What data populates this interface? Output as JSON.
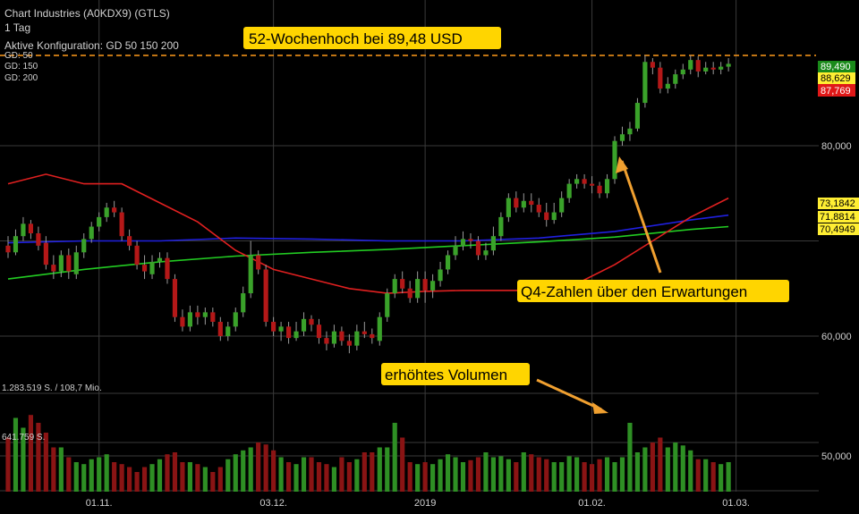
{
  "header": {
    "instrument": "Chart Industries (A0KDX9) (GTLS)",
    "interval": "1 Tag",
    "config": "Aktive Konfiguration: GD 50 150 200",
    "legend": [
      {
        "label": "GD: 50",
        "color": "#e02020"
      },
      {
        "label": "GD: 150",
        "color": "#2020e0"
      },
      {
        "label": "GD: 200",
        "color": "#22cc22"
      }
    ]
  },
  "annotations": {
    "high_52w": "52-Wochenhoch bei 89,48 USD",
    "q4": "Q4-Zahlen über den Erwartungen",
    "volume": "erhöhtes Volumen"
  },
  "price_badges": [
    {
      "text": "89,490",
      "bg": "#1a8a1a",
      "fg": "#ffffff"
    },
    {
      "text": "88,629",
      "bg": "#ffee33",
      "fg": "#000000"
    },
    {
      "text": "87,769",
      "bg": "#e01818",
      "fg": "#ffffff"
    },
    {
      "text": "73,1842",
      "bg": "#ffee33",
      "fg": "#000000"
    },
    {
      "text": "71,8814",
      "bg": "#ffee33",
      "fg": "#000000"
    },
    {
      "text": "70,4949",
      "bg": "#ffee33",
      "fg": "#000000"
    }
  ],
  "volume_labels": {
    "max": "1.283.519 S. / 108,7 Mio.",
    "mid": "641.759 S."
  },
  "colors": {
    "up": "#3aa22a",
    "down": "#b41818",
    "up_volume": "#2e8f24",
    "down_volume": "#8a1414",
    "grid": "#3a3a3a",
    "high_line": "#ff9a1a",
    "callout_bg": "#ffd500",
    "arrow": "#f0a030",
    "gd50": "#e02020",
    "gd150": "#2020e0",
    "gd200": "#22cc22"
  },
  "chart_data": {
    "type": "candlestick",
    "y_axis": {
      "ticks": [
        50,
        60,
        80
      ],
      "tick_labels": [
        "50,000",
        "60,000",
        "80,000"
      ],
      "range": [
        45,
        93
      ]
    },
    "x_axis": {
      "tick_labels": [
        {
          "label": "01.11.",
          "index": 12
        },
        {
          "label": "03.12.",
          "index": 35
        },
        {
          "label": "2019",
          "index": 55
        },
        {
          "label": "01.02.",
          "index": 77
        },
        {
          "label": "01.03.",
          "index": 96
        }
      ],
      "n_sessions": 100
    },
    "high_52w": 89.48,
    "candles": [
      [
        0,
        69.5,
        68.8,
        70.5,
        68.2
      ],
      [
        1,
        68.8,
        70.5,
        71.2,
        68.5
      ],
      [
        2,
        70.5,
        71.8,
        72.5,
        70.0
      ],
      [
        3,
        71.8,
        70.8,
        72.2,
        70.2
      ],
      [
        4,
        70.8,
        69.5,
        71.5,
        69.0
      ],
      [
        5,
        69.8,
        67.5,
        70.5,
        67.0
      ],
      [
        6,
        67.5,
        66.8,
        68.5,
        66.0
      ],
      [
        7,
        66.8,
        68.5,
        69.0,
        66.2
      ],
      [
        8,
        68.5,
        66.8,
        69.2,
        66.0
      ],
      [
        9,
        66.5,
        68.8,
        69.5,
        66.0
      ],
      [
        10,
        68.8,
        70.2,
        70.8,
        68.2
      ],
      [
        11,
        70.2,
        71.5,
        72.0,
        69.8
      ],
      [
        12,
        71.5,
        72.5,
        73.0,
        71.0
      ],
      [
        13,
        72.5,
        73.5,
        74.0,
        72.0
      ],
      [
        14,
        73.5,
        73.0,
        74.2,
        72.5
      ],
      [
        15,
        73.0,
        70.5,
        73.5,
        70.0
      ],
      [
        16,
        70.5,
        69.5,
        71.2,
        69.0
      ],
      [
        17,
        69.5,
        67.5,
        70.0,
        67.0
      ],
      [
        18,
        67.5,
        66.8,
        68.5,
        66.0
      ],
      [
        19,
        66.5,
        67.8,
        68.5,
        66.0
      ],
      [
        20,
        67.8,
        68.2,
        68.8,
        67.2
      ],
      [
        21,
        68.2,
        66.0,
        68.8,
        65.5
      ],
      [
        22,
        66.0,
        62.0,
        66.5,
        61.5
      ],
      [
        23,
        62.0,
        61.0,
        62.8,
        60.5
      ],
      [
        24,
        61.0,
        62.5,
        63.2,
        60.5
      ],
      [
        25,
        62.5,
        62.0,
        63.2,
        61.2
      ],
      [
        26,
        62.0,
        62.5,
        63.0,
        61.2
      ],
      [
        27,
        62.5,
        61.5,
        63.0,
        61.0
      ],
      [
        28,
        61.5,
        60.0,
        62.0,
        59.5
      ],
      [
        29,
        60.0,
        61.0,
        61.5,
        59.5
      ],
      [
        30,
        61.0,
        62.5,
        63.0,
        60.5
      ],
      [
        31,
        62.5,
        64.5,
        65.2,
        62.0
      ],
      [
        32,
        64.5,
        68.5,
        70.0,
        64.0
      ],
      [
        33,
        68.5,
        67.0,
        69.0,
        66.5
      ],
      [
        34,
        67.0,
        61.5,
        67.5,
        61.0
      ],
      [
        35,
        61.5,
        60.5,
        62.0,
        60.0
      ],
      [
        36,
        60.5,
        61.0,
        61.5,
        59.5
      ],
      [
        37,
        61.0,
        59.8,
        61.5,
        59.2
      ],
      [
        38,
        59.8,
        60.5,
        61.5,
        59.5
      ],
      [
        39,
        60.5,
        61.8,
        62.5,
        60.0
      ],
      [
        40,
        61.8,
        61.2,
        62.2,
        60.5
      ],
      [
        41,
        61.2,
        59.8,
        61.8,
        59.2
      ],
      [
        42,
        59.8,
        59.2,
        60.5,
        58.5
      ],
      [
        43,
        59.2,
        60.5,
        61.2,
        58.8
      ],
      [
        44,
        60.5,
        59.5,
        61.0,
        59.0
      ],
      [
        45,
        59.5,
        59.0,
        60.2,
        58.2
      ],
      [
        46,
        59.0,
        60.5,
        61.2,
        58.5
      ],
      [
        47,
        60.5,
        60.2,
        61.5,
        59.8
      ],
      [
        48,
        60.2,
        59.8,
        60.8,
        59.2
      ],
      [
        49,
        59.5,
        62.0,
        62.5,
        59.0
      ],
      [
        50,
        62.0,
        64.5,
        65.0,
        61.5
      ],
      [
        51,
        64.5,
        66.0,
        66.5,
        64.0
      ],
      [
        52,
        66.0,
        65.0,
        66.8,
        64.5
      ],
      [
        53,
        65.0,
        64.0,
        65.8,
        63.5
      ],
      [
        54,
        64.0,
        66.0,
        66.8,
        63.5
      ],
      [
        55,
        66.0,
        64.8,
        66.8,
        63.5
      ],
      [
        56,
        64.8,
        65.8,
        66.5,
        64.0
      ],
      [
        57,
        65.8,
        67.0,
        67.8,
        65.2
      ],
      [
        58,
        67.0,
        68.5,
        69.0,
        66.5
      ],
      [
        59,
        68.5,
        69.5,
        70.5,
        68.0
      ],
      [
        60,
        69.5,
        70.2,
        71.0,
        69.0
      ],
      [
        61,
        70.2,
        70.0,
        70.8,
        69.2
      ],
      [
        62,
        70.0,
        68.5,
        70.5,
        68.0
      ],
      [
        63,
        68.5,
        69.0,
        69.8,
        68.0
      ],
      [
        64,
        69.0,
        70.5,
        71.5,
        68.5
      ],
      [
        65,
        70.5,
        72.5,
        73.0,
        70.0
      ],
      [
        66,
        72.5,
        74.5,
        75.0,
        72.0
      ],
      [
        67,
        74.5,
        73.5,
        75.2,
        73.0
      ],
      [
        68,
        73.5,
        74.2,
        75.0,
        73.0
      ],
      [
        69,
        74.2,
        73.8,
        75.0,
        73.0
      ],
      [
        70,
        73.8,
        73.0,
        74.5,
        72.5
      ],
      [
        71,
        73.0,
        72.2,
        74.0,
        71.5
      ],
      [
        72,
        72.2,
        73.0,
        74.0,
        71.8
      ],
      [
        73,
        73.0,
        74.5,
        75.2,
        72.5
      ],
      [
        74,
        74.5,
        76.0,
        76.5,
        74.0
      ],
      [
        75,
        76.0,
        76.5,
        77.0,
        75.5
      ],
      [
        76,
        76.5,
        76.0,
        77.0,
        75.5
      ],
      [
        77,
        76.0,
        75.8,
        76.8,
        75.0
      ],
      [
        78,
        75.8,
        75.0,
        76.2,
        74.5
      ],
      [
        79,
        75.0,
        76.5,
        77.0,
        74.5
      ],
      [
        80,
        76.5,
        80.5,
        81.0,
        76.0
      ],
      [
        81,
        80.5,
        81.2,
        82.0,
        80.0
      ],
      [
        82,
        81.2,
        81.8,
        82.5,
        80.5
      ],
      [
        83,
        81.8,
        84.5,
        85.0,
        81.5
      ],
      [
        84,
        84.5,
        88.8,
        89.5,
        84.0
      ],
      [
        85,
        88.8,
        88.2,
        89.2,
        87.5
      ],
      [
        86,
        88.2,
        86.0,
        88.8,
        85.5
      ],
      [
        87,
        86.0,
        86.5,
        87.2,
        85.5
      ],
      [
        88,
        86.5,
        87.5,
        88.0,
        86.0
      ],
      [
        89,
        87.5,
        88.0,
        88.6,
        87.0
      ],
      [
        90,
        88.0,
        89.0,
        89.5,
        87.5
      ],
      [
        91,
        89.0,
        87.8,
        89.4,
        87.2
      ],
      [
        92,
        87.8,
        88.2,
        88.8,
        87.5
      ],
      [
        93,
        88.2,
        88.0,
        88.8,
        87.5
      ],
      [
        94,
        88.0,
        88.3,
        88.8,
        87.5
      ],
      [
        95,
        88.3,
        88.6,
        89.2,
        87.8
      ]
    ],
    "volume": [
      0.55,
      0.75,
      0.65,
      0.78,
      0.7,
      0.6,
      0.45,
      0.45,
      0.35,
      0.3,
      0.28,
      0.33,
      0.35,
      0.38,
      0.3,
      0.28,
      0.25,
      0.2,
      0.25,
      0.28,
      0.33,
      0.38,
      0.4,
      0.3,
      0.3,
      0.28,
      0.25,
      0.2,
      0.25,
      0.33,
      0.38,
      0.42,
      0.45,
      0.5,
      0.48,
      0.42,
      0.35,
      0.3,
      0.28,
      0.35,
      0.35,
      0.3,
      0.28,
      0.25,
      0.35,
      0.3,
      0.33,
      0.4,
      0.4,
      0.45,
      0.45,
      0.7,
      0.55,
      0.3,
      0.28,
      0.3,
      0.28,
      0.33,
      0.38,
      0.35,
      0.3,
      0.32,
      0.35,
      0.4,
      0.35,
      0.36,
      0.33,
      0.3,
      0.4,
      0.38,
      0.35,
      0.33,
      0.3,
      0.3,
      0.36,
      0.35,
      0.3,
      0.28,
      0.33,
      0.35,
      0.3,
      0.35,
      0.7,
      0.4,
      0.45,
      0.5,
      0.55,
      0.45,
      0.5,
      0.47,
      0.42,
      0.33,
      0.33,
      0.3,
      0.28,
      0.3
    ],
    "gd50": [
      [
        0,
        76
      ],
      [
        5,
        77
      ],
      [
        10,
        76
      ],
      [
        15,
        76
      ],
      [
        20,
        74
      ],
      [
        25,
        72
      ],
      [
        30,
        69
      ],
      [
        35,
        67
      ],
      [
        40,
        66
      ],
      [
        45,
        65
      ],
      [
        50,
        64.5
      ],
      [
        55,
        64.7
      ],
      [
        60,
        64.8
      ],
      [
        65,
        64.8
      ],
      [
        70,
        64.8
      ],
      [
        75,
        65.5
      ],
      [
        80,
        67.5
      ],
      [
        85,
        70
      ],
      [
        90,
        72.5
      ],
      [
        95,
        74.5
      ]
    ],
    "gd150": [
      [
        0,
        69.8
      ],
      [
        10,
        70
      ],
      [
        20,
        70
      ],
      [
        30,
        70.3
      ],
      [
        40,
        70.2
      ],
      [
        50,
        70
      ],
      [
        60,
        70
      ],
      [
        70,
        70.3
      ],
      [
        80,
        71
      ],
      [
        90,
        72.2
      ],
      [
        95,
        72.7
      ]
    ],
    "gd200": [
      [
        0,
        66
      ],
      [
        10,
        67
      ],
      [
        20,
        67.8
      ],
      [
        30,
        68.4
      ],
      [
        40,
        68.8
      ],
      [
        50,
        69.1
      ],
      [
        60,
        69.5
      ],
      [
        70,
        69.9
      ],
      [
        80,
        70.4
      ],
      [
        90,
        71.2
      ],
      [
        95,
        71.5
      ]
    ]
  }
}
